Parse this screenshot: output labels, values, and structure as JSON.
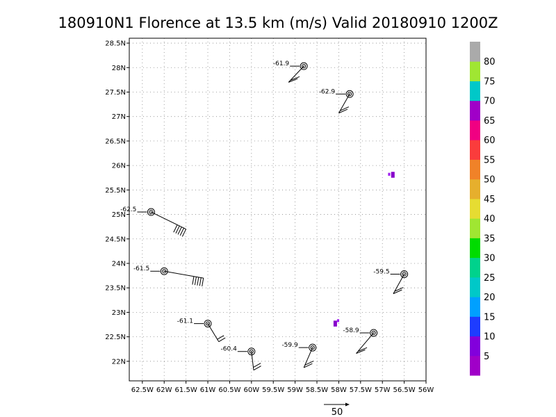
{
  "chart_data": {
    "type": "scatter",
    "title": "180910N1 Florence at 13.5 km (m/s) Valid 20180910  1200Z",
    "xlim": [
      -62.8,
      -56.0
    ],
    "ylim": [
      21.6,
      28.6
    ],
    "x_ticks": [
      {
        "value": -62.5,
        "label": "62.5W"
      },
      {
        "value": -62.0,
        "label": "62W"
      },
      {
        "value": -61.5,
        "label": "61.5W"
      },
      {
        "value": -61.0,
        "label": "61W"
      },
      {
        "value": -60.5,
        "label": "60.5W"
      },
      {
        "value": -60.0,
        "label": "60W"
      },
      {
        "value": -59.5,
        "label": "59.5W"
      },
      {
        "value": -59.0,
        "label": "59W"
      },
      {
        "value": -58.5,
        "label": "58.5W"
      },
      {
        "value": -58.0,
        "label": "58W"
      },
      {
        "value": -57.5,
        "label": "57.5W"
      },
      {
        "value": -57.0,
        "label": "57W"
      },
      {
        "value": -56.5,
        "label": "56.5W"
      },
      {
        "value": -56.0,
        "label": "56W"
      }
    ],
    "y_ticks": [
      {
        "value": 22.0,
        "label": "22N"
      },
      {
        "value": 22.5,
        "label": "22.5N"
      },
      {
        "value": 23.0,
        "label": "23N"
      },
      {
        "value": 23.5,
        "label": "23.5N"
      },
      {
        "value": 24.0,
        "label": "24N"
      },
      {
        "value": 24.5,
        "label": "24.5N"
      },
      {
        "value": 25.0,
        "label": "25N"
      },
      {
        "value": 25.5,
        "label": "25.5N"
      },
      {
        "value": 26.0,
        "label": "26N"
      },
      {
        "value": 26.5,
        "label": "26.5N"
      },
      {
        "value": 27.0,
        "label": "27N"
      },
      {
        "value": 27.5,
        "label": "27.5N"
      },
      {
        "value": 28.0,
        "label": "28N"
      },
      {
        "value": 28.5,
        "label": "28.5N"
      }
    ],
    "grid": true,
    "points": [
      {
        "lon": -58.8,
        "lat": 28.03,
        "label": "-61.9",
        "barb_lon": -59.15,
        "barb_lat": 27.7,
        "barb": "short"
      },
      {
        "lon": -57.75,
        "lat": 27.46,
        "label": "-62.9",
        "barb_lon": -58.0,
        "barb_lat": 27.07,
        "barb": "short"
      },
      {
        "lon": -62.3,
        "lat": 25.05,
        "label": "-62.5",
        "barb_lon": -61.5,
        "barb_lat": 24.7,
        "barb": "long"
      },
      {
        "lon": -62.0,
        "lat": 23.84,
        "label": "-61.5",
        "barb_lon": -61.1,
        "barb_lat": 23.7,
        "barb": "long"
      },
      {
        "lon": -56.5,
        "lat": 23.78,
        "label": "-59.5",
        "barb_lon": -56.75,
        "barb_lat": 23.38,
        "barb": "short"
      },
      {
        "lon": -61.0,
        "lat": 22.77,
        "label": "-61.1",
        "barb_lon": -60.75,
        "barb_lat": 22.4,
        "barb": "short"
      },
      {
        "lon": -60.0,
        "lat": 22.2,
        "label": "-60.4",
        "barb_lon": -59.95,
        "barb_lat": 21.82,
        "barb": "short"
      },
      {
        "lon": -58.6,
        "lat": 22.28,
        "label": "-59.9",
        "barb_lon": -58.8,
        "barb_lat": 21.87,
        "barb": "short"
      },
      {
        "lon": -57.2,
        "lat": 22.58,
        "label": "-58.9",
        "barb_lon": -57.6,
        "barb_lat": 22.16,
        "barb": "short"
      }
    ],
    "filled_cells": [
      {
        "lon": -56.8,
        "lat": 25.87,
        "dlon": 0.08,
        "dlat": 0.12,
        "color": "#8800cc"
      },
      {
        "lon": -56.87,
        "lat": 25.85,
        "dlon": 0.05,
        "dlat": 0.06,
        "color": "#a020f0"
      },
      {
        "lon": -58.12,
        "lat": 22.83,
        "dlon": 0.08,
        "dlat": 0.12,
        "color": "#8800cc"
      },
      {
        "lon": -58.04,
        "lat": 22.86,
        "dlon": 0.05,
        "dlat": 0.06,
        "color": "#a020f0"
      }
    ],
    "colorbar": {
      "colors": [
        "#a000c8",
        "#8200dc",
        "#1e3cff",
        "#00a0ff",
        "#00c8c8",
        "#00d28c",
        "#00dc00",
        "#a0e632",
        "#e6dc32",
        "#e6af2d",
        "#f08228",
        "#fa3c3c",
        "#f00082",
        "#a000c8",
        "#00c8c8",
        "#a0e632",
        "#aaaaaa"
      ],
      "labels": [
        "5",
        "10",
        "15",
        "20",
        "25",
        "30",
        "35",
        "40",
        "45",
        "50",
        "55",
        "60",
        "65",
        "70",
        "75",
        "80"
      ]
    },
    "reference_vector": {
      "label": "50"
    }
  }
}
